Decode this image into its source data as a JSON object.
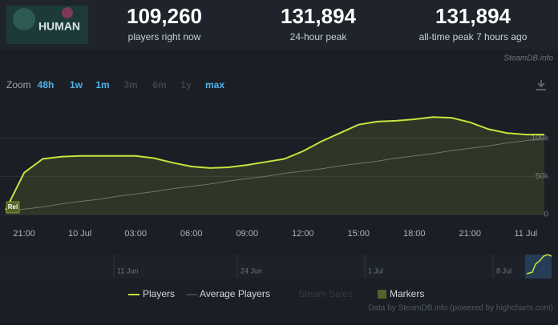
{
  "header": {
    "logo_text": "HUMAN",
    "stats": [
      {
        "value": "109,260",
        "label": "players right now"
      },
      {
        "value": "131,894",
        "label": "24-hour peak"
      },
      {
        "value": "131,894",
        "label": "all-time peak 7 hours ago"
      }
    ],
    "source": "SteamDB.info"
  },
  "zoom": {
    "label": "Zoom",
    "options": [
      "48h",
      "1w",
      "1m",
      "3m",
      "6m",
      "1y",
      "max"
    ]
  },
  "chart_data": {
    "type": "line",
    "categories": [
      null,
      "21:00",
      null,
      null,
      "10 Jul",
      null,
      null,
      "03:00",
      null,
      null,
      "06:00",
      null,
      null,
      "09:00",
      null,
      null,
      "12:00",
      null,
      null,
      "15:00",
      null,
      null,
      "18:00",
      null,
      null,
      "21:00",
      null,
      null,
      "11 Jul",
      null
    ],
    "series": [
      {
        "name": "Players",
        "color": "#c4e53d",
        "values": [
          6000,
          55000,
          73000,
          76000,
          77000,
          77000,
          77000,
          77000,
          74000,
          68000,
          63000,
          61000,
          62000,
          65000,
          69000,
          73000,
          83000,
          96000,
          107000,
          118000,
          122000,
          123000,
          125000,
          128000,
          127000,
          121000,
          112000,
          107000,
          105000,
          105000
        ]
      },
      {
        "name": "Average Players",
        "color": "#5d6a7a",
        "values": [
          4000,
          7000,
          10000,
          14000,
          17000,
          20000,
          24000,
          27000,
          30000,
          34000,
          37000,
          40000,
          44000,
          47000,
          50000,
          54000,
          57000,
          60000,
          64000,
          67000,
          70000,
          74000,
          77000,
          80000,
          84000,
          87000,
          90000,
          94000,
          97000,
          100000
        ]
      }
    ],
    "legend_extra": [
      "Steam Sales",
      "Markers"
    ],
    "markers": [
      "Rel"
    ],
    "ylim": [
      0,
      145000
    ],
    "yticks": [
      0,
      {
        "value": 50000,
        "label": "50k"
      },
      {
        "value": 100000,
        "label": "100k"
      }
    ],
    "grid": true,
    "navigator_labels": [
      "11 Jun",
      "24 Jun",
      "1 Jul",
      "8 Jul"
    ],
    "credit": "Data by SteamDB.info (powered by highcharts.com)"
  }
}
